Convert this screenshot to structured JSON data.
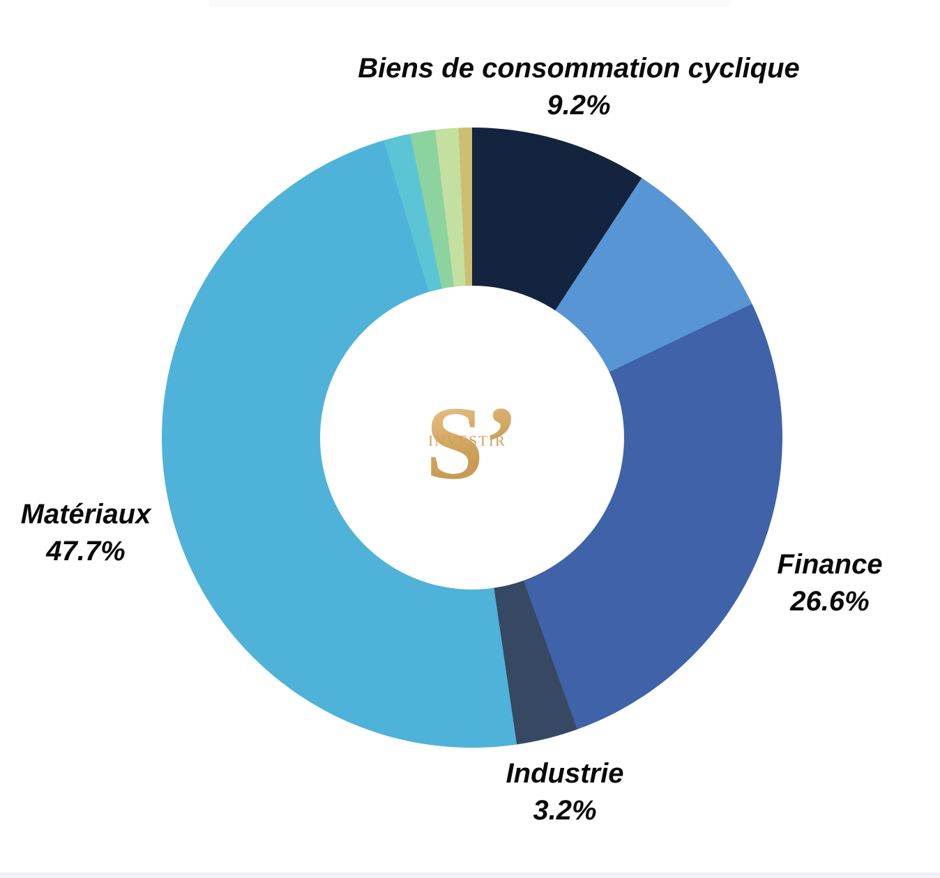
{
  "page": {
    "background": "#ffffff",
    "text_color": "#0a0a0a",
    "top_strip_color": "#fafafb",
    "bottom_strip_color": "#f1f1f6"
  },
  "logo": {
    "monogram": "S’",
    "word": "INVESTIR",
    "gold": "#CDA05A",
    "gold_light": "#E8C186",
    "gold_dark": "#C08F43"
  },
  "chart_data": {
    "type": "pie",
    "subtype": "donut",
    "title": "",
    "legend": "none",
    "direction": "clockwise",
    "start_angle_deg": 0,
    "inner_radius_ratio": 0.49,
    "units": "%",
    "series": [
      {
        "label": "Biens de consommation cyclique",
        "value": 9.2,
        "value_label": "9.2%",
        "color": "#14243E",
        "labeled": true
      },
      {
        "label": "",
        "value": 8.7,
        "value_label": "",
        "color": "#5795D5",
        "labeled": false
      },
      {
        "label": "Finance",
        "value": 26.6,
        "value_label": "26.6%",
        "color": "#3F62A8",
        "labeled": true
      },
      {
        "label": "Industrie",
        "value": 3.2,
        "value_label": "3.2%",
        "color": "#374862",
        "labeled": true
      },
      {
        "label": "Matériaux",
        "value": 47.7,
        "value_label": "47.7%",
        "color": "#4FB2D9",
        "labeled": true
      },
      {
        "label": "",
        "value": 1.4,
        "value_label": "",
        "color": "#5BC5D5",
        "labeled": false
      },
      {
        "label": "",
        "value": 1.3,
        "value_label": "",
        "color": "#8CD3A0",
        "labeled": false
      },
      {
        "label": "",
        "value": 1.2,
        "value_label": "",
        "color": "#C4E0A0",
        "labeled": false
      },
      {
        "label": "",
        "value": 0.7,
        "value_label": "",
        "color": "#CDBE72",
        "labeled": false
      }
    ]
  }
}
